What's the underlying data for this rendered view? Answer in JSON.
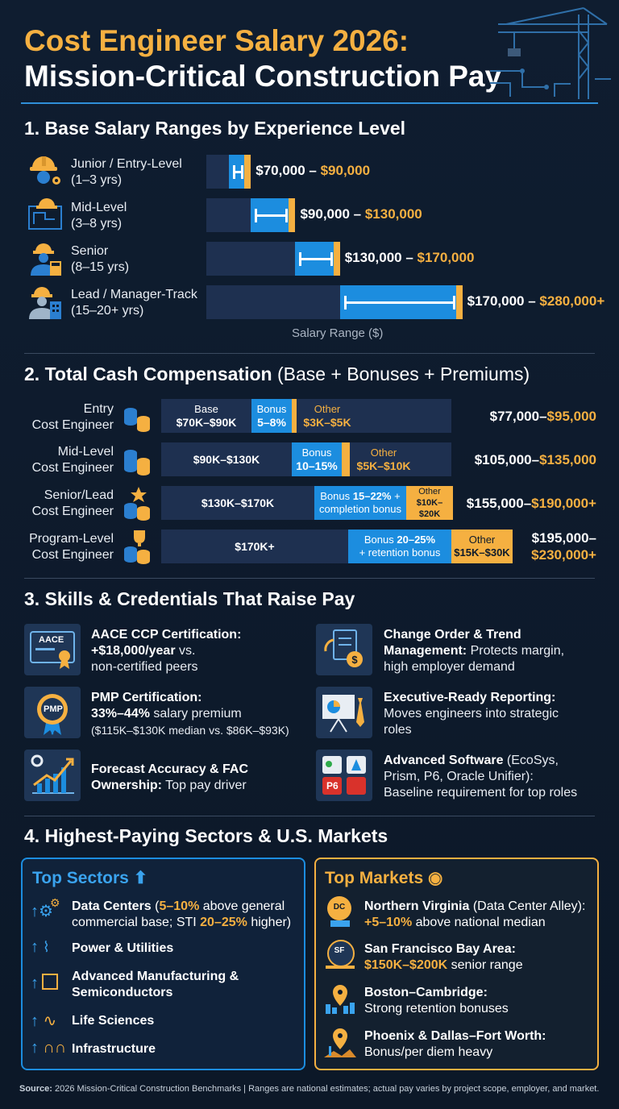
{
  "header": {
    "title_line1": "Cost Engineer Salary 2026:",
    "title_line2": "Mission-Critical Construction Pay"
  },
  "sections": {
    "s1": "1.  Base Salary Ranges by Experience Level",
    "s2_bold": "2. Total Cash Compensation",
    "s2_light": " (Base + Bonuses + Premiums)",
    "s3": "3. Skills & Credentials That Raise Pay",
    "s4": "4. Highest-Paying Sectors & U.S. Markets"
  },
  "chart_data": [
    {
      "type": "bar",
      "title": "Base Salary Ranges by Experience Level",
      "xlabel": "Salary Range ($)",
      "categories": [
        "Junior / Entry-Level (1–3 yrs)",
        "Mid-Level (3–8 yrs)",
        "Senior (8–15 yrs)",
        "Lead / Manager-Track (15–20+ yrs)"
      ],
      "ranges": [
        {
          "min": 70000,
          "max": 90000,
          "min_label": "$70,000",
          "max_label": "$90,000"
        },
        {
          "min": 90000,
          "max": 130000,
          "min_label": "$90,000",
          "max_label": "$130,000"
        },
        {
          "min": 130000,
          "max": 170000,
          "min_label": "$130,000",
          "max_label": "$170,000"
        },
        {
          "min": 170000,
          "max": 280000,
          "min_label": "$170,000",
          "max_label": "$280,000+"
        }
      ]
    },
    {
      "type": "bar",
      "title": "Total Cash Compensation (Base + Bonuses + Premiums)",
      "categories": [
        "Entry Cost Engineer",
        "Mid-Level Cost Engineer",
        "Senior/Lead Cost Engineer",
        "Program-Level Cost Engineer"
      ],
      "series": [
        {
          "name": "Base",
          "labels": [
            "$70K–$90K",
            "$90K–$130K",
            "$130K–$170K",
            "$170K+"
          ]
        },
        {
          "name": "Bonus",
          "labels": [
            "5–8%",
            "10–15%",
            "15–22% + completion bonus",
            "20–25% + retention bonus"
          ]
        },
        {
          "name": "Other",
          "labels": [
            "$3K–$5K",
            "$5K–$10K",
            "$10K–$20K",
            "$15K–$30K"
          ]
        }
      ],
      "totals": [
        {
          "low": "$77,000",
          "high": "$95,000"
        },
        {
          "low": "$105,000",
          "high": "$135,000"
        },
        {
          "low": "$155,000",
          "high": "$190,000+"
        },
        {
          "low": "$195,000",
          "high": "$230,000+"
        }
      ]
    }
  ],
  "s1": {
    "rows": [
      {
        "line1": "Junior / Entry-Level",
        "line2": "(1–3 yrs)",
        "icon": "hardhat-gear-icon"
      },
      {
        "line1": "Mid-Level",
        "line2": "(3–8 yrs)",
        "icon": "blueprint-icon"
      },
      {
        "line1": "Senior",
        "line2": "(8–15 yrs)",
        "icon": "engineer-calculator-icon"
      },
      {
        "line1": "Lead / Manager-Track",
        "line2": "(15–20+ yrs)",
        "icon": "engineer-building-icon"
      }
    ],
    "sep": " – "
  },
  "s2": {
    "rows": [
      {
        "l1": "Entry",
        "l2": "Cost Engineer",
        "base_h": "Base",
        "base": "$70K–$90K",
        "bonus_h": "Bonus",
        "bonus": "5–8%",
        "other_h": "Other",
        "other": "$3K–$5K"
      },
      {
        "l1": "Mid-Level",
        "l2": "Cost Engineer",
        "base": "$90K–$130K",
        "bonus_h": "Bonus",
        "bonus": "10–15%",
        "other_h": "Other",
        "other": "$5K–$10K"
      },
      {
        "l1": "Senior/Lead",
        "l2": "Cost Engineer",
        "base": "$130K–$170K",
        "bonus_a": "Bonus ",
        "bonus_b": "15–22%",
        "bonus_c": " +",
        "bonus2": "completion bonus",
        "other_h": "Other",
        "other": "$10K–$20K"
      },
      {
        "l1": "Program-Level",
        "l2": "Cost Engineer",
        "base": "$170K+",
        "bonus_a": "Bonus ",
        "bonus_b": "20–25%",
        "bonus2": "+ retention bonus",
        "other_h": "Other",
        "other": "$15K–$30K"
      }
    ],
    "dash": "–"
  },
  "skills": [
    {
      "title": "AACE CCP Certification:",
      "hl": "+$18,000/year",
      "rest": " vs.",
      "rest2": "non-certified peers",
      "icon": "aace-certificate-icon",
      "badge": "AACE"
    },
    {
      "title": "Change Order & Trend",
      "title2": "Management:",
      "rest": " Protects margin,",
      "rest2": "high employer demand",
      "icon": "change-order-icon"
    },
    {
      "title": "PMP Certification:",
      "hl": "33%–44%",
      "rest": " salary premium",
      "rest2": "($115K–$130K median vs. $86K–$93K)",
      "icon": "pmp-badge-icon",
      "badge": "PMP"
    },
    {
      "title": "Executive-Ready Reporting:",
      "rest": "Moves engineers into strategic",
      "rest2": "roles",
      "icon": "presentation-icon"
    },
    {
      "title": "Forecast Accuracy & FAC",
      "title2": "Ownership:",
      "rest": " Top pay driver",
      "icon": "growth-chart-icon"
    },
    {
      "title": "Advanced Software",
      "rest": " (EcoSys,",
      "rest2": "Prism, P6, Oracle Unifier):",
      "rest3": "Baseline requirement for top roles",
      "icon": "software-apps-icon",
      "badge": "P6"
    }
  ],
  "sectors": {
    "title": "Top Sectors",
    "items": [
      {
        "name": "Data Centers",
        "a": " (",
        "b": "5–10%",
        "c": " above general",
        "d": "commercial base; STI ",
        "e": "20–25%",
        "f": " higher)",
        "icon": "gears-icon"
      },
      {
        "name": "Power & Utilities",
        "icon": "power-tower-icon"
      },
      {
        "name": "Advanced Manufacturing &",
        "name2": "Semiconductors",
        "icon": "chip-icon"
      },
      {
        "name": "Life Sciences",
        "icon": "dna-icon"
      },
      {
        "name": "Infrastructure",
        "icon": "bridge-icon"
      }
    ]
  },
  "markets": {
    "title": "Top Markets",
    "items": [
      {
        "name": "Northern Virginia",
        "rest": " (Data Center Alley):",
        "hl": "+5–10%",
        "rest2": " above national median",
        "badge": "DC",
        "icon": "capitol-pin-icon"
      },
      {
        "name": "San Francisco Bay Area:",
        "hl": "$150K–$200K",
        "rest2": " senior range",
        "badge": "SF",
        "icon": "bridge-pin-icon"
      },
      {
        "name": "Boston–Cambridge:",
        "rest2": "Strong retention bonuses",
        "icon": "skyline-pin-icon"
      },
      {
        "name": "Phoenix & Dallas–Fort Worth:",
        "rest2": "Bonus/per diem heavy",
        "icon": "desert-pin-icon"
      }
    ]
  },
  "footer": {
    "bold": "Source:",
    "text": " 2026 Mission-Critical Construction Benchmarks | Ranges are national estimates; actual pay varies by project scope, employer, and market."
  },
  "colors": {
    "accent": "#f5b041",
    "blue": "#1c8ddf",
    "background": "#0e1a2b"
  }
}
